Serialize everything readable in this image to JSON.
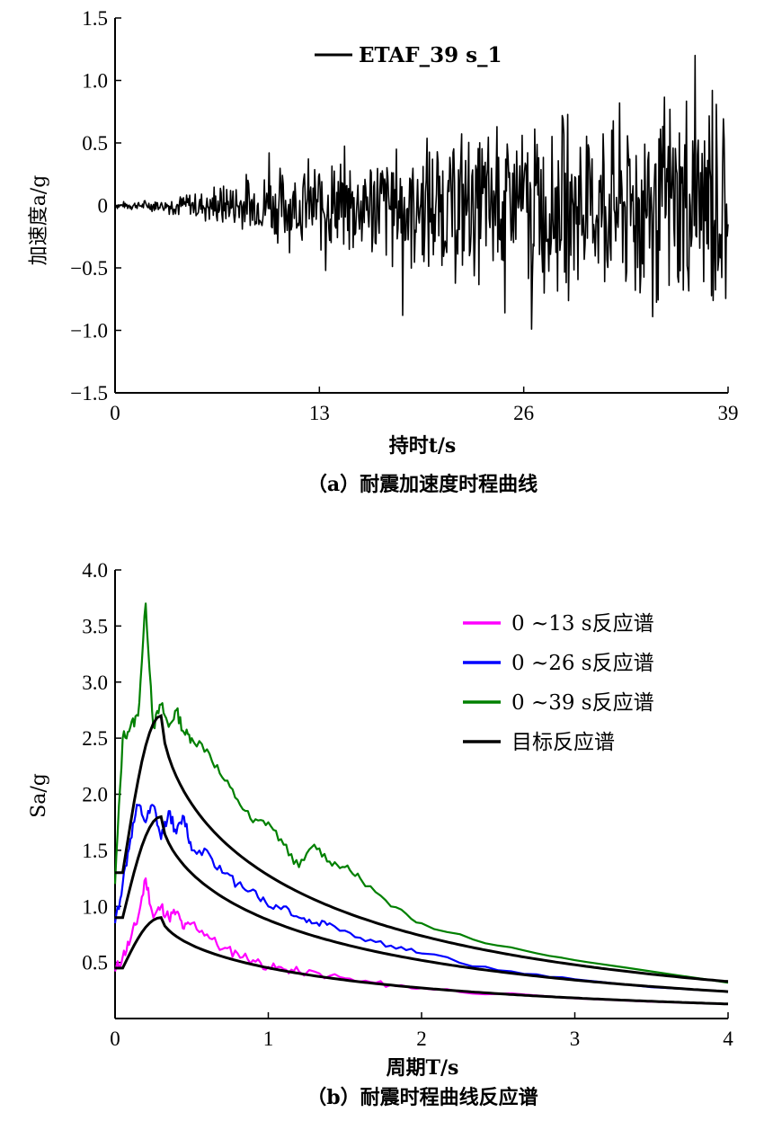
{
  "chart_data": [
    {
      "type": "line",
      "caption": "（a）耐震加速度时程曲线",
      "xlabel": "持时t/s",
      "ylabel": "加速度a/g",
      "xlim": [
        0,
        39
      ],
      "ylim": [
        -1.5,
        1.5
      ],
      "xticks": [
        "0",
        "13",
        "26",
        "39"
      ],
      "yticks": [
        "1.5",
        "1.0",
        "0.5",
        "0",
        "−0.5",
        "−1.0",
        "−1.5"
      ],
      "legend_position": "top-right",
      "series": [
        {
          "name": "ETAF_39 s_1",
          "color": "#000000",
          "envelope": [
            [
              0,
              0.03
            ],
            [
              2,
              0.05
            ],
            [
              4,
              0.1
            ],
            [
              6,
              0.18
            ],
            [
              8,
              0.28
            ],
            [
              10,
              0.35
            ],
            [
              13,
              0.45
            ],
            [
              16,
              0.55
            ],
            [
              19,
              0.62
            ],
            [
              22,
              0.7
            ],
            [
              26,
              0.8
            ],
            [
              30,
              0.88
            ],
            [
              33,
              0.95
            ],
            [
              36,
              1.05
            ],
            [
              39,
              1.05
            ]
          ],
          "peaks": [
            {
              "t": 9.8,
              "a": 0.42
            },
            {
              "t": 13.4,
              "a": -0.52
            },
            {
              "t": 18.3,
              "a": -0.88
            },
            {
              "t": 24.3,
              "a": 0.63
            },
            {
              "t": 24.8,
              "a": -0.86
            },
            {
              "t": 26.5,
              "a": -0.99
            },
            {
              "t": 32.1,
              "a": 0.82
            },
            {
              "t": 34.2,
              "a": -0.89
            },
            {
              "t": 36.9,
              "a": 1.2
            },
            {
              "t": 38.0,
              "a": 0.92
            }
          ]
        }
      ]
    },
    {
      "type": "line",
      "caption": "（b）耐震时程曲线反应谱",
      "xlabel": "周期T/s",
      "ylabel": "Sa/g",
      "xlim": [
        0,
        4
      ],
      "ylim": [
        0,
        4
      ],
      "xticks": [
        "0",
        "1",
        "2",
        "3",
        "4"
      ],
      "yticks": [
        "4.0",
        "3.5",
        "3.0",
        "2.5",
        "2.0",
        "1.5",
        "1.0",
        "0.5"
      ],
      "legend_position": "top-right",
      "series": [
        {
          "name": "0 ~13 s反应谱",
          "color": "#ff00ff",
          "points": [
            [
              0.0,
              0.42
            ],
            [
              0.05,
              0.55
            ],
            [
              0.1,
              0.7
            ],
            [
              0.15,
              0.9
            ],
            [
              0.2,
              1.25
            ],
            [
              0.25,
              0.9
            ],
            [
              0.3,
              1.0
            ],
            [
              0.35,
              0.9
            ],
            [
              0.4,
              0.95
            ],
            [
              0.45,
              0.8
            ],
            [
              0.5,
              0.85
            ],
            [
              0.6,
              0.75
            ],
            [
              0.7,
              0.62
            ],
            [
              0.8,
              0.58
            ],
            [
              0.9,
              0.52
            ],
            [
              1.0,
              0.46
            ],
            [
              1.1,
              0.44
            ],
            [
              1.2,
              0.42
            ],
            [
              1.4,
              0.38
            ],
            [
              1.6,
              0.33
            ],
            [
              1.8,
              0.3
            ],
            [
              2.0,
              0.27
            ],
            [
              2.5,
              0.22
            ],
            [
              3.0,
              0.18
            ],
            [
              3.5,
              0.15
            ],
            [
              4.0,
              0.13
            ]
          ]
        },
        {
          "name": "0 ~26 s反应谱",
          "color": "#0000ff",
          "points": [
            [
              0.0,
              0.85
            ],
            [
              0.05,
              1.2
            ],
            [
              0.1,
              1.6
            ],
            [
              0.15,
              1.9
            ],
            [
              0.2,
              1.75
            ],
            [
              0.25,
              1.9
            ],
            [
              0.3,
              1.6
            ],
            [
              0.35,
              1.85
            ],
            [
              0.4,
              1.65
            ],
            [
              0.45,
              1.8
            ],
            [
              0.5,
              1.5
            ],
            [
              0.6,
              1.5
            ],
            [
              0.7,
              1.3
            ],
            [
              0.8,
              1.2
            ],
            [
              0.9,
              1.15
            ],
            [
              1.0,
              1.0
            ],
            [
              1.1,
              1.0
            ],
            [
              1.2,
              0.9
            ],
            [
              1.3,
              0.85
            ],
            [
              1.4,
              0.85
            ],
            [
              1.6,
              0.72
            ],
            [
              1.8,
              0.65
            ],
            [
              2.0,
              0.58
            ],
            [
              2.5,
              0.43
            ],
            [
              3.0,
              0.35
            ],
            [
              3.5,
              0.28
            ],
            [
              4.0,
              0.24
            ]
          ]
        },
        {
          "name": "0 ~39 s反应谱",
          "color": "#008000",
          "points": [
            [
              0.0,
              1.2
            ],
            [
              0.05,
              2.5
            ],
            [
              0.1,
              2.6
            ],
            [
              0.15,
              2.7
            ],
            [
              0.2,
              3.7
            ],
            [
              0.25,
              2.6
            ],
            [
              0.3,
              2.8
            ],
            [
              0.35,
              2.6
            ],
            [
              0.4,
              2.75
            ],
            [
              0.45,
              2.55
            ],
            [
              0.5,
              2.5
            ],
            [
              0.6,
              2.4
            ],
            [
              0.7,
              2.15
            ],
            [
              0.8,
              1.95
            ],
            [
              0.9,
              1.75
            ],
            [
              1.0,
              1.75
            ],
            [
              1.1,
              1.55
            ],
            [
              1.2,
              1.35
            ],
            [
              1.3,
              1.55
            ],
            [
              1.4,
              1.4
            ],
            [
              1.5,
              1.35
            ],
            [
              1.6,
              1.25
            ],
            [
              1.8,
              1.0
            ],
            [
              2.0,
              0.85
            ],
            [
              2.5,
              0.65
            ],
            [
              3.0,
              0.52
            ],
            [
              3.5,
              0.42
            ],
            [
              4.0,
              0.32
            ]
          ]
        },
        {
          "name": "目标反应谱",
          "color": "#000000",
          "target_plateau_period": 0.3,
          "target_rise_start": 0.05,
          "target_peaks": [
            0.9,
            1.8,
            2.7
          ],
          "target_starts": [
            0.45,
            0.9,
            1.3
          ],
          "target_end": [
            0.13,
            0.24,
            0.33
          ]
        }
      ]
    }
  ]
}
